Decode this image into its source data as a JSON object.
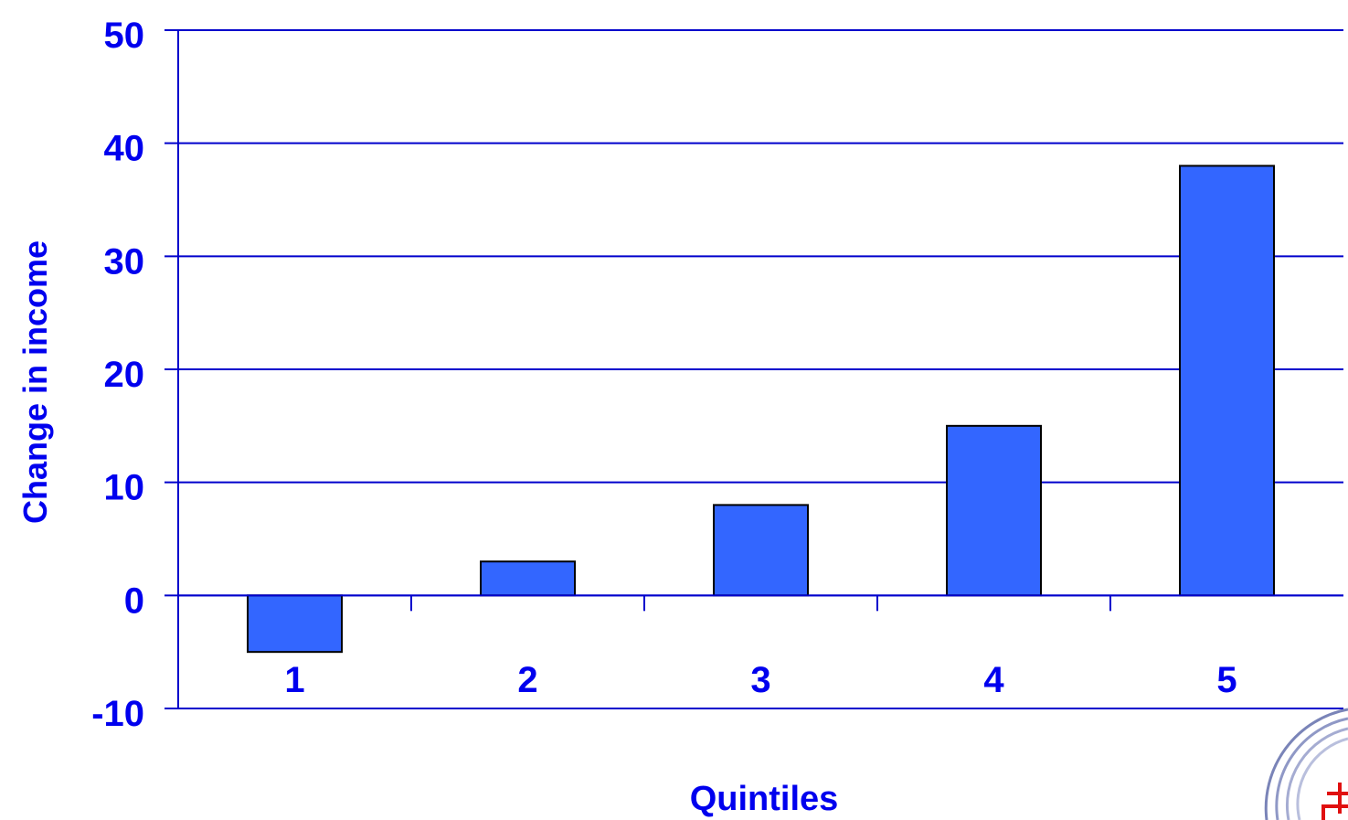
{
  "chart_data": {
    "type": "bar",
    "title": "",
    "xlabel": "Quintiles",
    "ylabel": "Change in income",
    "categories": [
      "1",
      "2",
      "3",
      "4",
      "5"
    ],
    "values": [
      -5,
      3,
      8,
      15,
      38
    ],
    "ylim": [
      -10,
      50
    ],
    "yticks": [
      "-10",
      "0",
      "10",
      "20",
      "30",
      "40",
      "50"
    ],
    "grid": true,
    "legend": "none"
  },
  "colors": {
    "bar": "#3366ff",
    "text": "#0000ee",
    "axis": "#0000cc",
    "bar_outline": "#000000"
  },
  "logo": {
    "icon": "circular-logo-fragment-icon"
  }
}
